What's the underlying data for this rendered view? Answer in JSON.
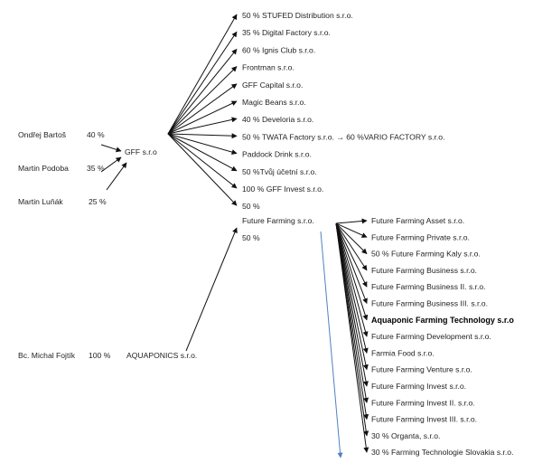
{
  "owners": [
    {
      "name": "Ondřej Bartoš",
      "share": "40 %"
    },
    {
      "name": "Martin Podoba",
      "share": "35 %"
    },
    {
      "name": "Martin Luňák",
      "share": "25 %"
    },
    {
      "name": "Bc. Michal Fojtík",
      "share": "100 %"
    }
  ],
  "gff": {
    "label": "GFF s.r.o"
  },
  "aquaponics": {
    "label": "AQUAPONICS s.r.o."
  },
  "gff_subsidiaries": [
    "50 % STUFED Distribution s.r.o.",
    "35 % Digital Factory s.r.o.",
    "60 % Ignis Club s.r.o.",
    "Frontman s.r.o.",
    "GFF Capital s.r.o.",
    "Magic Beans s.r.o.",
    "40 % Develoria s.r.o.",
    "50 % TWATA Factory s.r.o. → 60 %VARIO FACTORY s.r.o.",
    "Paddock Drink s.r.o.",
    "50 %Tvůj účetní s.r.o.",
    "100 % GFF Invest s.r.o.",
    "50 %"
  ],
  "future_farming": {
    "label": "Future Farming s.r.o.",
    "lower_share": "50 %"
  },
  "ff_subsidiaries": [
    {
      "label": "Future Farming Asset s.r.o.",
      "bold": false
    },
    {
      "label": "Future Farming Private s.r.o.",
      "bold": false
    },
    {
      "label": "50 % Future Farming Kaly s.r.o.",
      "bold": false
    },
    {
      "label": "Future Farming Business s.r.o.",
      "bold": false
    },
    {
      "label": "Future Farming Business II. s.r.o.",
      "bold": false
    },
    {
      "label": "Future Farming Business III. s.r.o.",
      "bold": false
    },
    {
      "label": "Aquaponic Farming Technology s.r.o",
      "bold": true
    },
    {
      "label": "Future Farming Development s.r.o.",
      "bold": false
    },
    {
      "label": "Farmia Food s.r.o.",
      "bold": false
    },
    {
      "label": "Future Farming Venture s.r.o.",
      "bold": false
    },
    {
      "label": "Future Farming Invest s.r.o.",
      "bold": false
    },
    {
      "label": "Future Farming Invest II. s.r.o.",
      "bold": false
    },
    {
      "label": "Future Farming Invest III. s.r.o.",
      "bold": false
    },
    {
      "label": "30 % Organta, s.r.o.",
      "bold": false
    },
    {
      "label": "30 % Farming Technologie Slovakia s.r.o.",
      "bold": false
    }
  ],
  "colors": {
    "arrow": "#111111",
    "accent_arrow": "#4f81bd",
    "text": "#1f1f1f"
  }
}
